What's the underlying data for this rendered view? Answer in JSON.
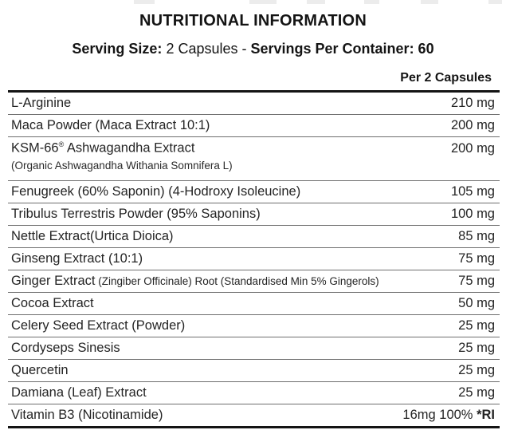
{
  "header": {
    "title": "NUTRITIONAL INFORMATION",
    "serving_size_label": "Serving Size:",
    "serving_size_value": " 2 Capsules - ",
    "servings_per_container": "Servings Per Container: 60",
    "column_header": "Per 2 Capsules"
  },
  "table": {
    "rows": [
      {
        "name": "L-Arginine",
        "value": "210 mg"
      },
      {
        "name": "Maca Powder (Maca Extract 10:1)",
        "value": "200 mg"
      },
      {
        "name": "KSM-66",
        "sup": "®",
        "name2": " Ashwagandha Extract",
        "value": "200 mg",
        "sub": "(Organic Ashwagandha Withania Somnifera L)"
      },
      {
        "name": "Fenugreek (60% Saponin) (4-Hodroxy Isoleucine)",
        "value": "105 mg"
      },
      {
        "name": "Tribulus Terrestris Powder (95% Saponins)",
        "value": "100 mg"
      },
      {
        "name": "Nettle Extract(Urtica Dioica)",
        "value": "85 mg"
      },
      {
        "name": "Ginseng Extract (10:1)",
        "value": "75 mg"
      },
      {
        "name": "Ginger Extract",
        "small": " (Zingiber Officinale) Root (Standardised Min 5% Gingerols)",
        "value": "75 mg"
      },
      {
        "name": "Cocoa Extract",
        "value": "50 mg"
      },
      {
        "name": "Celery Seed Extract (Powder)",
        "value": "25 mg"
      },
      {
        "name": "Cordyseps Sinesis",
        "value": "25 mg"
      },
      {
        "name": "Quercetin",
        "value": "25 mg"
      },
      {
        "name": "Damiana (Leaf) Extract",
        "value": "25 mg"
      },
      {
        "name": "Vitamin B3 (Nicotinamide)",
        "value": "16mg 100% ",
        "value_bold": "*RI",
        "thick_border": true
      }
    ]
  },
  "colors": {
    "background": "#ffffff",
    "text": "#1f1f1f",
    "rule_thin": "#6f6f6f",
    "rule_thick": "#141414"
  }
}
